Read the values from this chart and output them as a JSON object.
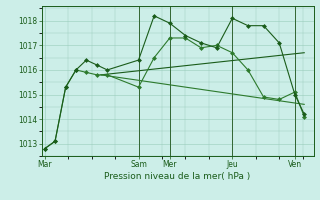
{
  "background_color": "#cceee8",
  "grid_color": "#99ccbb",
  "line_color_dark": "#1a5c1a",
  "line_color_mid": "#2d7a2d",
  "title": "Pression niveau de la mer( hPa )",
  "yticks": [
    1013,
    1014,
    1015,
    1016,
    1017,
    1018
  ],
  "ylim": [
    1012.5,
    1018.6
  ],
  "xtick_labels": [
    "Mar",
    "Sam",
    "Mer",
    "Jeu",
    "Ven"
  ],
  "xtick_positions": [
    0,
    3.0,
    4.0,
    6.0,
    8.0
  ],
  "xlim": [
    -0.1,
    8.6
  ],
  "series1_x": [
    0,
    0.33,
    0.67,
    1.0,
    1.33,
    1.67,
    2.0,
    3.0,
    3.5,
    4.0,
    4.5,
    5.0,
    5.5,
    6.0,
    6.5,
    7.0,
    7.5,
    8.0,
    8.3
  ],
  "series1_y": [
    1012.8,
    1013.1,
    1015.3,
    1016.0,
    1016.4,
    1016.2,
    1016.0,
    1016.4,
    1018.2,
    1017.9,
    1017.4,
    1017.1,
    1016.9,
    1018.1,
    1017.8,
    1017.8,
    1017.1,
    1015.0,
    1014.2
  ],
  "series2_x": [
    0,
    0.33,
    0.67,
    1.0,
    1.33,
    1.67,
    2.0,
    3.0,
    3.5,
    4.0,
    4.5,
    5.0,
    5.5,
    6.0,
    6.5,
    7.0,
    7.5,
    8.0,
    8.3
  ],
  "series2_y": [
    1012.8,
    1013.1,
    1015.3,
    1016.0,
    1015.9,
    1015.8,
    1015.8,
    1015.3,
    1016.5,
    1017.3,
    1017.3,
    1016.9,
    1017.0,
    1016.7,
    1016.0,
    1014.9,
    1014.8,
    1015.1,
    1014.1
  ],
  "series3_x": [
    1.8,
    8.3
  ],
  "series3_y": [
    1015.8,
    1016.7
  ],
  "series4_x": [
    1.8,
    8.3
  ],
  "series4_y": [
    1015.8,
    1014.6
  ],
  "vlines": [
    3.0,
    4.0,
    6.0,
    8.0
  ],
  "vline_color": "#336633",
  "marker": "D",
  "markersize": 2.5,
  "linewidth": 0.8
}
